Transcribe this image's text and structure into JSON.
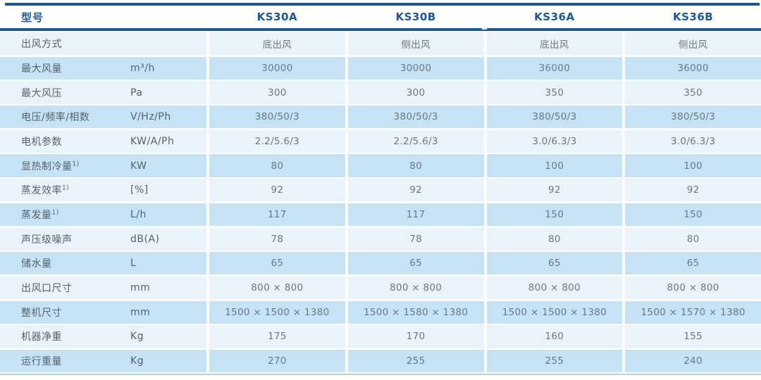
{
  "colors": {
    "accent": "#1b579a",
    "row_light": "#e9f3fb",
    "row_dark": "#c6e2f5",
    "label_text": "#55626d",
    "value_text": "#6b7882",
    "bottom_line": "#b9cdd8"
  },
  "table": {
    "header": {
      "label": "型号",
      "models": [
        "KS30A",
        "KS30B",
        "KS36A",
        "KS36B"
      ]
    },
    "rows": [
      {
        "label": "出风方式",
        "sup": "",
        "unit": "",
        "values": [
          "底出风",
          "侧出风",
          "底出风",
          "侧出风"
        ]
      },
      {
        "label": "最大风量",
        "sup": "",
        "unit": "m³/h",
        "values": [
          "30000",
          "30000",
          "36000",
          "36000"
        ]
      },
      {
        "label": "最大风压",
        "sup": "",
        "unit": "Pa",
        "values": [
          "300",
          "300",
          "350",
          "350"
        ]
      },
      {
        "label": "电压/频率/相数",
        "sup": "",
        "unit": "V/Hz/Ph",
        "values": [
          "380/50/3",
          "380/50/3",
          "380/50/3",
          "380/50/3"
        ]
      },
      {
        "label": "电机参数",
        "sup": "",
        "unit": "KW/A/Ph",
        "values": [
          "2.2/5.6/3",
          "2.2/5.6/3",
          "3.0/6.3/3",
          "3.0/6.3/3"
        ]
      },
      {
        "label": "显热制冷量",
        "sup": "1)",
        "unit": "KW",
        "values": [
          "80",
          "80",
          "100",
          "100"
        ]
      },
      {
        "label": "蒸发效率",
        "sup": "1)",
        "unit": "[%]",
        "values": [
          "92",
          "92",
          "92",
          "92"
        ]
      },
      {
        "label": "蒸发量",
        "sup": "1)",
        "unit": "L/h",
        "values": [
          "117",
          "117",
          "150",
          "150"
        ]
      },
      {
        "label": "声压级噪声",
        "sup": "",
        "unit": "dB(A)",
        "values": [
          "78",
          "78",
          "80",
          "80"
        ]
      },
      {
        "label": "储水量",
        "sup": "",
        "unit": "L",
        "values": [
          "65",
          "65",
          "65",
          "65"
        ]
      },
      {
        "label": "出风口尺寸",
        "sup": "",
        "unit": "mm",
        "values": [
          "800 × 800",
          "800 × 800",
          "800 × 800",
          "800 × 800"
        ]
      },
      {
        "label": "整机尺寸",
        "sup": "",
        "unit": "mm",
        "values": [
          "1500 × 1500 × 1380",
          "1500 × 1580 × 1380",
          "1500 × 1500 × 1380",
          "1500 × 1570 × 1380"
        ]
      },
      {
        "label": "机器净重",
        "sup": "",
        "unit": "Kg",
        "values": [
          "175",
          "170",
          "160",
          "155"
        ]
      },
      {
        "label": "运行重量",
        "sup": "",
        "unit": "Kg",
        "values": [
          "270",
          "255",
          "255",
          "240"
        ]
      }
    ]
  }
}
